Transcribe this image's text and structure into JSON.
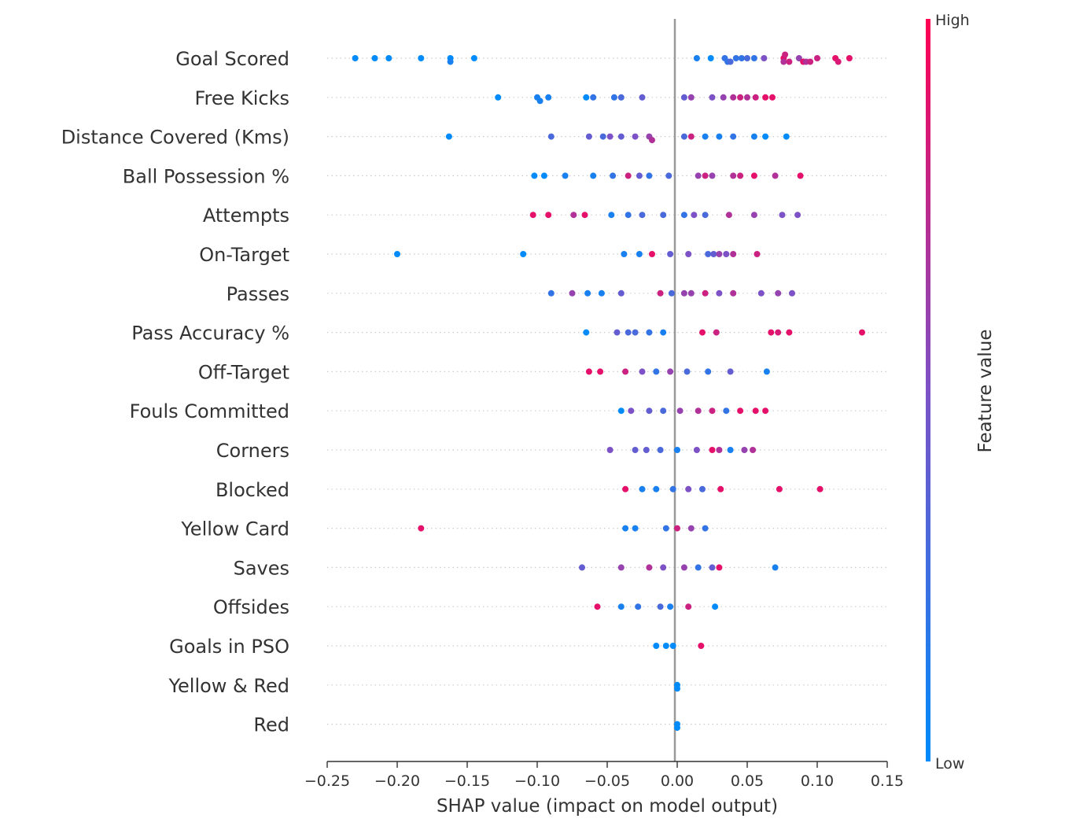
{
  "chart_data": {
    "type": "scatter",
    "subtype": "shap-beeswarm",
    "xlabel": "SHAP value (impact on model output)",
    "xlim": [
      -0.25,
      0.15
    ],
    "x_ticks": [
      "−0.25",
      "−0.20",
      "−0.15",
      "−0.10",
      "−0.05",
      "0.00",
      "0.05",
      "0.10",
      "0.15"
    ],
    "x_tick_values": [
      -0.25,
      -0.2,
      -0.15,
      -0.1,
      -0.05,
      0.0,
      0.05,
      0.1,
      0.15
    ],
    "colorbar": {
      "title": "Feature value",
      "high_label": "High",
      "low_label": "Low",
      "high_color": "#ff0052",
      "low_color": "#008bfb"
    },
    "features": [
      {
        "name": "Goal Scored",
        "points": [
          [
            -0.23,
            0.0
          ],
          [
            -0.216,
            0.0
          ],
          [
            -0.206,
            0.0
          ],
          [
            -0.183,
            0.0
          ],
          [
            -0.162,
            0.0
          ],
          [
            -0.162,
            0.1
          ],
          [
            -0.145,
            0.0
          ],
          [
            0.014,
            0.1
          ],
          [
            0.024,
            0.0
          ],
          [
            0.034,
            0.2
          ],
          [
            0.036,
            0.2
          ],
          [
            0.038,
            0.3
          ],
          [
            0.042,
            0.2
          ],
          [
            0.046,
            0.2
          ],
          [
            0.05,
            0.3
          ],
          [
            0.055,
            0.2
          ],
          [
            0.062,
            0.5
          ],
          [
            0.076,
            0.9
          ],
          [
            0.076,
            0.7
          ],
          [
            0.077,
            0.8
          ],
          [
            0.08,
            0.8
          ],
          [
            0.087,
            0.6
          ],
          [
            0.09,
            0.9
          ],
          [
            0.092,
            0.7
          ],
          [
            0.095,
            0.8
          ],
          [
            0.1,
            0.8
          ],
          [
            0.113,
            0.9
          ],
          [
            0.115,
            0.85
          ],
          [
            0.123,
            0.9
          ]
        ]
      },
      {
        "name": "Free Kicks",
        "points": [
          [
            -0.128,
            0.0
          ],
          [
            -0.1,
            0.1
          ],
          [
            -0.098,
            0.1
          ],
          [
            -0.092,
            0.1
          ],
          [
            -0.065,
            0.0
          ],
          [
            -0.06,
            0.2
          ],
          [
            -0.045,
            0.2
          ],
          [
            -0.04,
            0.3
          ],
          [
            -0.025,
            0.4
          ],
          [
            0.005,
            0.4
          ],
          [
            0.01,
            0.6
          ],
          [
            0.025,
            0.5
          ],
          [
            0.033,
            0.6
          ],
          [
            0.04,
            0.7
          ],
          [
            0.045,
            0.8
          ],
          [
            0.05,
            0.7
          ],
          [
            0.056,
            0.8
          ],
          [
            0.063,
            0.9
          ],
          [
            0.068,
            0.9
          ]
        ]
      },
      {
        "name": "Distance Covered (Kms)",
        "points": [
          [
            -0.163,
            0.0
          ],
          [
            -0.09,
            0.3
          ],
          [
            -0.063,
            0.4
          ],
          [
            -0.053,
            0.3
          ],
          [
            -0.048,
            0.5
          ],
          [
            -0.04,
            0.4
          ],
          [
            -0.03,
            0.5
          ],
          [
            -0.02,
            0.6
          ],
          [
            -0.018,
            0.7
          ],
          [
            0.005,
            0.3
          ],
          [
            0.01,
            0.8
          ],
          [
            0.02,
            0.1
          ],
          [
            0.03,
            0.1
          ],
          [
            0.04,
            0.2
          ],
          [
            0.055,
            0.1
          ],
          [
            0.063,
            0.0
          ],
          [
            0.078,
            0.0
          ]
        ]
      },
      {
        "name": "Ball Possession %",
        "points": [
          [
            -0.102,
            0.0
          ],
          [
            -0.095,
            0.0
          ],
          [
            -0.08,
            0.1
          ],
          [
            -0.06,
            0.1
          ],
          [
            -0.046,
            0.2
          ],
          [
            -0.035,
            0.8
          ],
          [
            -0.027,
            0.4
          ],
          [
            -0.02,
            0.2
          ],
          [
            -0.006,
            0.3
          ],
          [
            0.015,
            0.6
          ],
          [
            0.02,
            0.8
          ],
          [
            0.025,
            0.6
          ],
          [
            0.04,
            0.7
          ],
          [
            0.045,
            0.8
          ],
          [
            0.055,
            0.9
          ],
          [
            0.07,
            0.7
          ],
          [
            0.088,
            0.9
          ]
        ]
      },
      {
        "name": "Attempts",
        "points": [
          [
            -0.103,
            0.9
          ],
          [
            -0.092,
            0.9
          ],
          [
            -0.074,
            0.7
          ],
          [
            -0.066,
            0.9
          ],
          [
            -0.047,
            0.1
          ],
          [
            -0.035,
            0.2
          ],
          [
            -0.025,
            0.3
          ],
          [
            -0.01,
            0.3
          ],
          [
            0.005,
            0.2
          ],
          [
            0.012,
            0.5
          ],
          [
            0.02,
            0.3
          ],
          [
            0.037,
            0.7
          ],
          [
            0.055,
            0.6
          ],
          [
            0.075,
            0.5
          ],
          [
            0.086,
            0.5
          ]
        ]
      },
      {
        "name": "On-Target",
        "points": [
          [
            -0.2,
            0.0
          ],
          [
            -0.11,
            0.0
          ],
          [
            -0.038,
            0.1
          ],
          [
            -0.027,
            0.1
          ],
          [
            -0.018,
            0.9
          ],
          [
            -0.005,
            0.4
          ],
          [
            0.008,
            0.5
          ],
          [
            0.022,
            0.3
          ],
          [
            0.026,
            0.4
          ],
          [
            0.03,
            0.6
          ],
          [
            0.035,
            0.5
          ],
          [
            0.04,
            0.7
          ],
          [
            0.057,
            0.8
          ]
        ]
      },
      {
        "name": "Passes",
        "points": [
          [
            -0.09,
            0.2
          ],
          [
            -0.075,
            0.6
          ],
          [
            -0.064,
            0.1
          ],
          [
            -0.054,
            0.1
          ],
          [
            -0.04,
            0.4
          ],
          [
            -0.012,
            0.8
          ],
          [
            -0.004,
            0.3
          ],
          [
            0.005,
            0.6
          ],
          [
            0.01,
            0.6
          ],
          [
            0.02,
            0.8
          ],
          [
            0.03,
            0.5
          ],
          [
            0.04,
            0.7
          ],
          [
            0.06,
            0.5
          ],
          [
            0.072,
            0.6
          ],
          [
            0.082,
            0.5
          ]
        ]
      },
      {
        "name": "Pass Accuracy %",
        "points": [
          [
            -0.065,
            0.0
          ],
          [
            -0.043,
            0.4
          ],
          [
            -0.035,
            0.3
          ],
          [
            -0.03,
            0.3
          ],
          [
            -0.02,
            0.2
          ],
          [
            -0.01,
            0.1
          ],
          [
            0.018,
            0.9
          ],
          [
            0.028,
            0.8
          ],
          [
            0.067,
            0.9
          ],
          [
            0.072,
            0.85
          ],
          [
            0.08,
            0.9
          ],
          [
            0.132,
            0.9
          ]
        ]
      },
      {
        "name": "Off-Target",
        "points": [
          [
            -0.063,
            0.9
          ],
          [
            -0.055,
            0.9
          ],
          [
            -0.037,
            0.8
          ],
          [
            -0.025,
            0.5
          ],
          [
            -0.015,
            0.2
          ],
          [
            -0.005,
            0.6
          ],
          [
            0.007,
            0.3
          ],
          [
            0.022,
            0.2
          ],
          [
            0.038,
            0.4
          ],
          [
            0.064,
            0.1
          ]
        ]
      },
      {
        "name": "Fouls Committed",
        "points": [
          [
            -0.04,
            0.0
          ],
          [
            -0.033,
            0.5
          ],
          [
            -0.02,
            0.4
          ],
          [
            -0.01,
            0.3
          ],
          [
            0.002,
            0.6
          ],
          [
            0.015,
            0.7
          ],
          [
            0.025,
            0.8
          ],
          [
            0.035,
            0.2
          ],
          [
            0.045,
            0.9
          ],
          [
            0.056,
            0.9
          ],
          [
            0.063,
            0.9
          ]
        ]
      },
      {
        "name": "Corners",
        "points": [
          [
            -0.048,
            0.5
          ],
          [
            -0.03,
            0.4
          ],
          [
            -0.022,
            0.4
          ],
          [
            -0.012,
            0.3
          ],
          [
            0.0,
            0.1
          ],
          [
            0.014,
            0.5
          ],
          [
            0.025,
            0.9
          ],
          [
            0.03,
            0.7
          ],
          [
            0.038,
            0.1
          ],
          [
            0.048,
            0.6
          ],
          [
            0.054,
            0.7
          ]
        ]
      },
      {
        "name": "Blocked",
        "points": [
          [
            -0.037,
            0.9
          ],
          [
            -0.025,
            0.1
          ],
          [
            -0.015,
            0.1
          ],
          [
            -0.003,
            0.2
          ],
          [
            0.008,
            0.5
          ],
          [
            0.018,
            0.3
          ],
          [
            0.031,
            0.9
          ],
          [
            0.073,
            0.9
          ],
          [
            0.102,
            0.9
          ]
        ]
      },
      {
        "name": "Yellow Card",
        "points": [
          [
            -0.183,
            0.9
          ],
          [
            -0.037,
            0.1
          ],
          [
            -0.03,
            0.1
          ],
          [
            -0.008,
            0.2
          ],
          [
            0.0,
            0.8
          ],
          [
            0.01,
            0.6
          ],
          [
            0.02,
            0.2
          ]
        ]
      },
      {
        "name": "Saves",
        "points": [
          [
            -0.068,
            0.4
          ],
          [
            -0.04,
            0.6
          ],
          [
            -0.02,
            0.7
          ],
          [
            -0.01,
            0.5
          ],
          [
            0.005,
            0.6
          ],
          [
            0.015,
            0.2
          ],
          [
            0.025,
            0.4
          ],
          [
            0.03,
            0.9
          ],
          [
            0.07,
            0.1
          ]
        ]
      },
      {
        "name": "Offsides",
        "points": [
          [
            -0.057,
            0.9
          ],
          [
            -0.04,
            0.1
          ],
          [
            -0.028,
            0.2
          ],
          [
            -0.012,
            0.3
          ],
          [
            -0.005,
            0.1
          ],
          [
            0.008,
            0.8
          ],
          [
            0.027,
            0.0
          ]
        ]
      },
      {
        "name": "Goals in PSO",
        "points": [
          [
            -0.015,
            0.0
          ],
          [
            -0.008,
            0.0
          ],
          [
            -0.003,
            0.0
          ],
          [
            0.017,
            0.9
          ]
        ]
      },
      {
        "name": "Yellow & Red",
        "points": [
          [
            0.0,
            0.0
          ],
          [
            0.0,
            0.0
          ]
        ]
      },
      {
        "name": "Red",
        "points": [
          [
            0.0,
            0.0
          ],
          [
            0.0,
            0.0
          ]
        ]
      }
    ]
  }
}
